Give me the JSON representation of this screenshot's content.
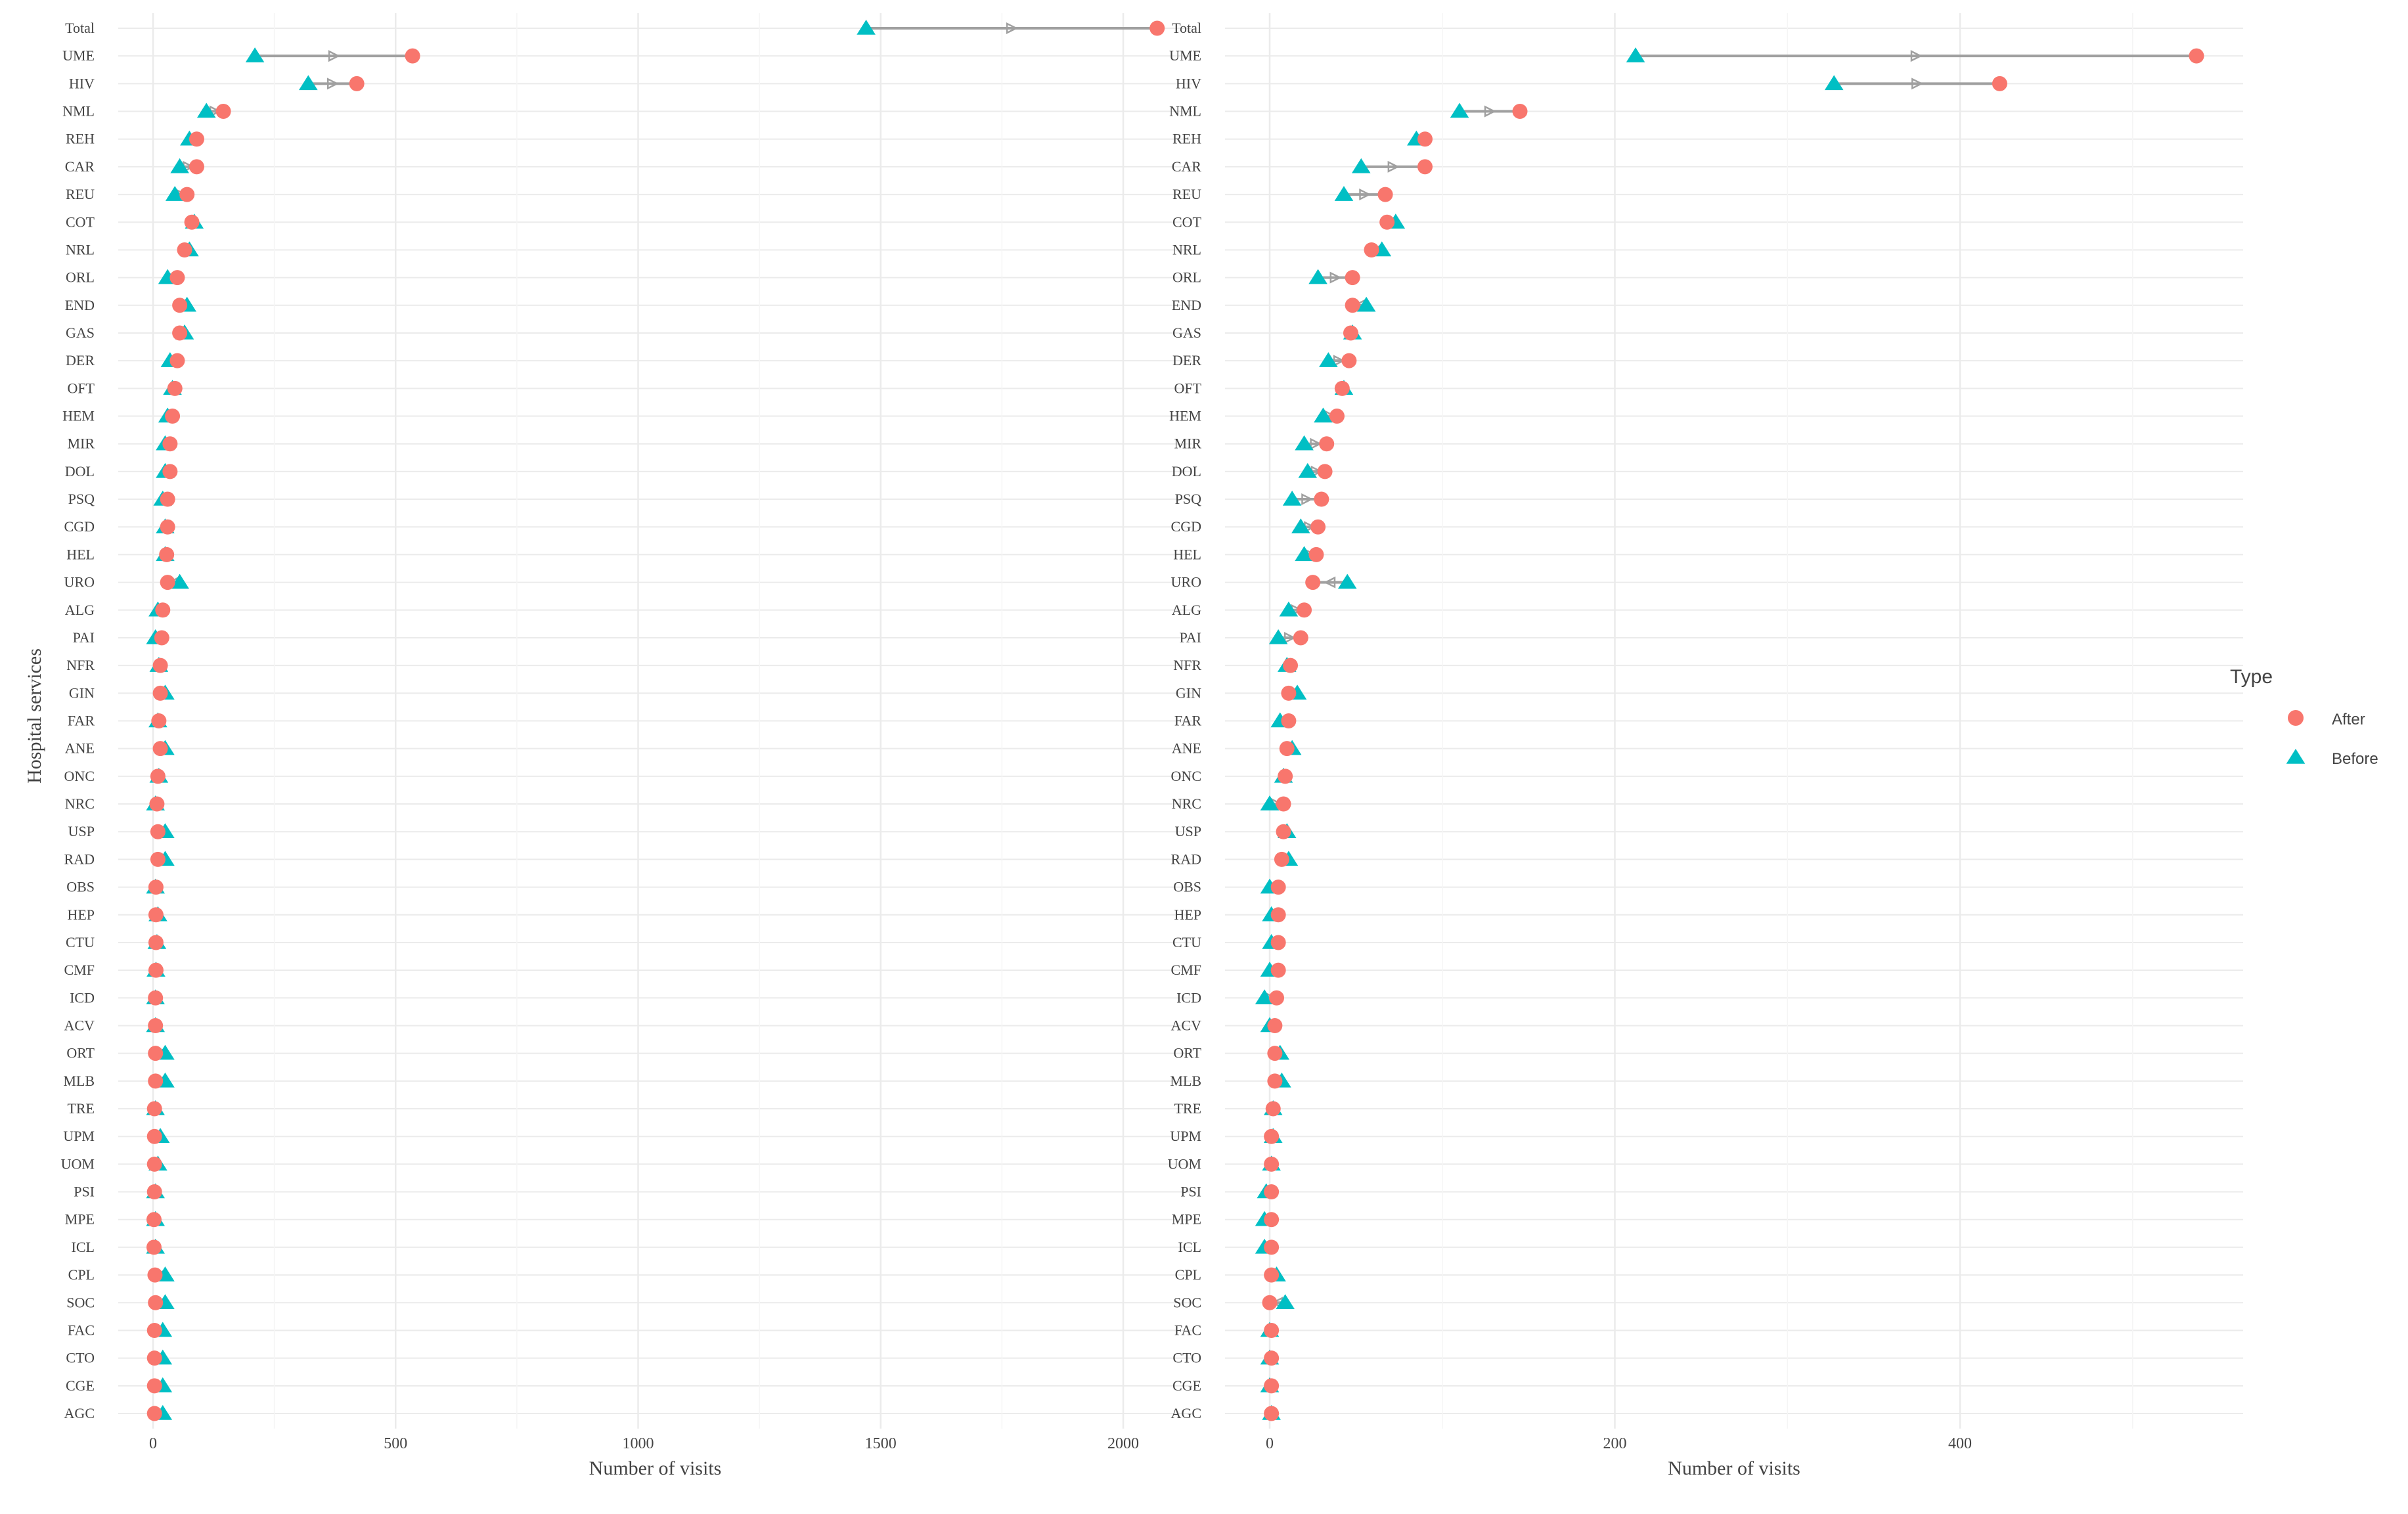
{
  "chart_data": {
    "type": "dumbbell",
    "categories": [
      "Total",
      "UME",
      "HIV",
      "NML",
      "REH",
      "CAR",
      "REU",
      "COT",
      "NRL",
      "ORL",
      "END",
      "GAS",
      "DER",
      "OFT",
      "HEM",
      "MIR",
      "DOL",
      "PSQ",
      "CGD",
      "HEL",
      "URO",
      "ALG",
      "PAI",
      "NFR",
      "GIN",
      "FAR",
      "ANE",
      "ONC",
      "NRC",
      "USP",
      "RAD",
      "OBS",
      "HEP",
      "CTU",
      "CMF",
      "ICD",
      "ACV",
      "ORT",
      "MLB",
      "TRE",
      "UPM",
      "UOM",
      "PSI",
      "MPE",
      "ICL",
      "CPL",
      "SOC",
      "FAC",
      "CTO",
      "CGE",
      "AGC"
    ],
    "ylabel": "Hospital services",
    "legend": {
      "title": "Type",
      "position": "right"
    },
    "colors": {
      "After": "#F8766D",
      "Before": "#00BFC4",
      "arrow": "#A0A0A0",
      "grid_major": "#EBEBEB",
      "grid_minor": "#F5F5F5",
      "text": "#444444"
    },
    "panels": [
      {
        "xlabel": "Number of visits",
        "xlim": [
          -80,
          2180
        ],
        "xticks": [
          0,
          500,
          1000,
          1500,
          2000
        ],
        "series": [
          {
            "name": "After",
            "values": [
              2070,
              535,
              420,
              145,
              90,
              90,
              70,
              80,
              65,
              50,
              55,
              55,
              50,
              45,
              40,
              35,
              35,
              30,
              30,
              28,
              30,
              20,
              18,
              15,
              15,
              12,
              15,
              10,
              8,
              10,
              10,
              6,
              6,
              6,
              6,
              5,
              5,
              5,
              5,
              3,
              3,
              3,
              3,
              2,
              2,
              4,
              5,
              3,
              3,
              3,
              3
            ]
          },
          {
            "name": "Before",
            "values": [
              1470,
              210,
              320,
              110,
              75,
              55,
              45,
              85,
              75,
              30,
              70,
              65,
              35,
              40,
              30,
              25,
              25,
              20,
              25,
              25,
              55,
              10,
              5,
              12,
              25,
              10,
              25,
              12,
              5,
              25,
              25,
              5,
              10,
              8,
              6,
              5,
              5,
              25,
              25,
              5,
              15,
              10,
              5,
              5,
              5,
              25,
              25,
              20,
              20,
              20,
              20
            ]
          }
        ]
      },
      {
        "xlabel": "Number of visits",
        "xlim": [
          -15,
          565
        ],
        "xticks": [
          0,
          200,
          400
        ],
        "series": [
          {
            "name": "After",
            "values": [
              null,
              537,
              423,
              145,
              90,
              90,
              67,
              68,
              59,
              48,
              48,
              47,
              46,
              42,
              39,
              33,
              32,
              30,
              28,
              27,
              25,
              20,
              18,
              12,
              11,
              11,
              10,
              9,
              8,
              8,
              7,
              5,
              5,
              5,
              5,
              4,
              3,
              3,
              3,
              2,
              1,
              1,
              1,
              1,
              1,
              1,
              0,
              1,
              1,
              1,
              1
            ]
          },
          {
            "name": "Before",
            "values": [
              null,
              212,
              327,
              110,
              85,
              53,
              43,
              73,
              65,
              28,
              56,
              48,
              34,
              43,
              31,
              20,
              22,
              13,
              18,
              20,
              45,
              11,
              5,
              10,
              16,
              6,
              13,
              8,
              0,
              10,
              11,
              0,
              1,
              1,
              0,
              -3,
              0,
              6,
              7,
              2,
              2,
              1,
              -2,
              -3,
              -3,
              4,
              9,
              0,
              0,
              0,
              1
            ]
          }
        ]
      }
    ]
  }
}
